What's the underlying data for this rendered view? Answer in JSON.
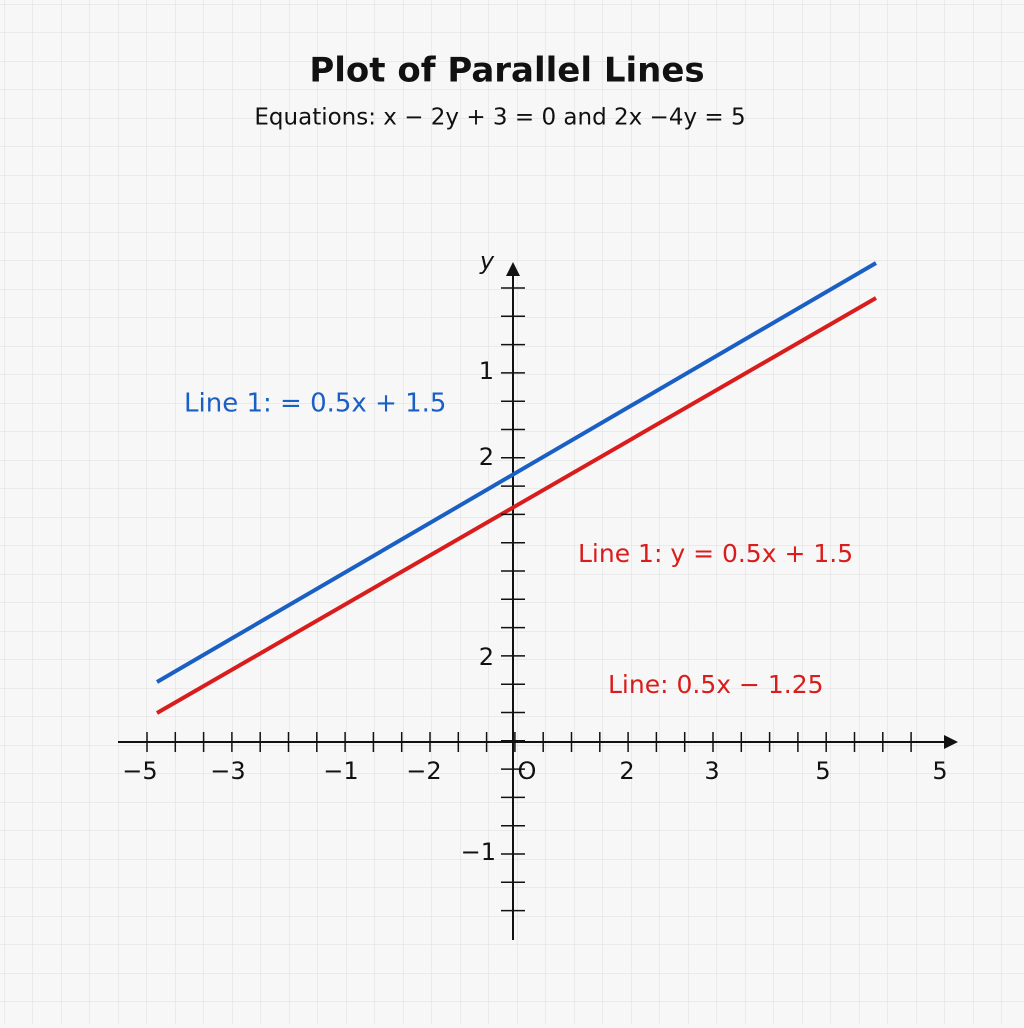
{
  "header": {
    "title": "Plot of Parallel Lines",
    "subtitle": "Equations: x − 2y + 3 = 0 and 2x −4y = 5"
  },
  "axes": {
    "y_label": "y",
    "x_tick_labels": [
      "−5",
      "−3",
      "−1",
      "−2",
      "O",
      "2",
      "3",
      "5",
      "5"
    ],
    "y_tick_labels": [
      "1",
      "2",
      "2",
      "−1"
    ]
  },
  "annotations": [
    "Line 1: = 0.5x + 1.5",
    "Line 1: y = 0.5x + 1.5",
    "Line: 0.5x − 1.25"
  ]
}
